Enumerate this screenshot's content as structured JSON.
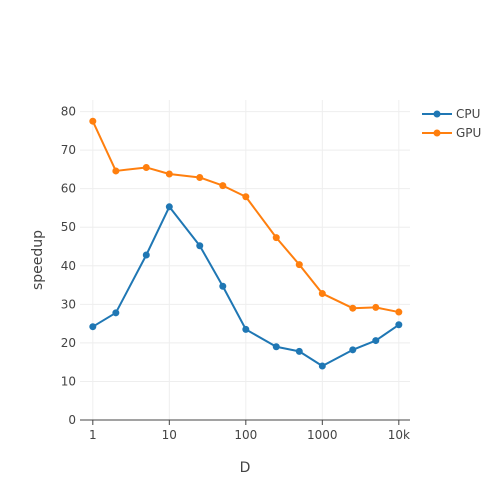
{
  "chart_data": {
    "type": "line",
    "xlabel": "D",
    "ylabel": "speedup",
    "x_scale": "log",
    "xlim": [
      0.68,
      14000
    ],
    "ylim": [
      0,
      83
    ],
    "x_ticks": [
      1,
      10,
      100,
      1000,
      10000
    ],
    "x_tick_labels": [
      "1",
      "10",
      "100",
      "1000",
      "10k"
    ],
    "y_ticks": [
      0,
      10,
      20,
      30,
      40,
      50,
      60,
      70,
      80
    ],
    "y_tick_labels": [
      "0",
      "10",
      "20",
      "30",
      "40",
      "50",
      "60",
      "70",
      "80"
    ],
    "grid": true,
    "legend_position": "top-right",
    "x": [
      1,
      2,
      5,
      10,
      25,
      50,
      100,
      250,
      500,
      1000,
      2500,
      5000,
      10000
    ],
    "series": [
      {
        "name": "CPU",
        "color": "#1f77b4",
        "values": [
          24.2,
          27.8,
          42.8,
          55.3,
          45.2,
          34.7,
          23.5,
          19.0,
          17.8,
          14.0,
          18.2,
          20.6,
          24.7
        ]
      },
      {
        "name": "GPU",
        "color": "#ff7f0e",
        "values": [
          77.5,
          64.6,
          65.5,
          63.8,
          62.9,
          60.8,
          57.9,
          47.3,
          40.3,
          32.8,
          29.0,
          29.2,
          28.0
        ]
      }
    ]
  }
}
